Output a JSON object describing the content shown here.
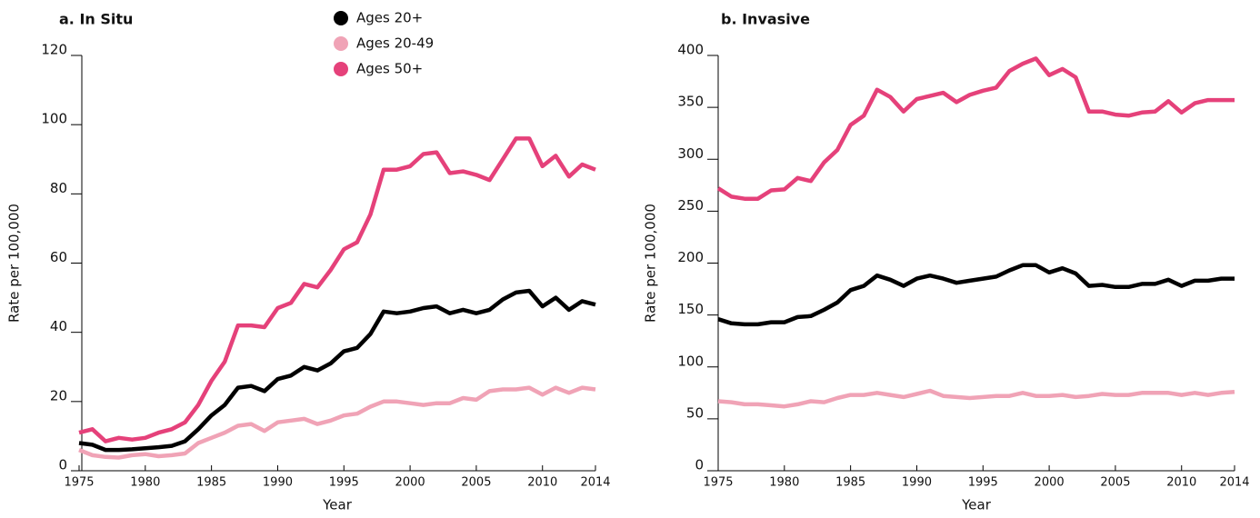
{
  "chart_data": [
    {
      "type": "line",
      "title": "a. In Situ",
      "x_label": "Year",
      "y_label": "Rate per 100,000",
      "x": [
        1975,
        1976,
        1977,
        1978,
        1979,
        1980,
        1981,
        1982,
        1983,
        1984,
        1985,
        1986,
        1987,
        1988,
        1989,
        1990,
        1991,
        1992,
        1993,
        1994,
        1995,
        1996,
        1997,
        1998,
        1999,
        2000,
        2001,
        2002,
        2003,
        2004,
        2005,
        2006,
        2007,
        2008,
        2009,
        2010,
        2011,
        2012,
        2013,
        2014
      ],
      "xlim": [
        1975,
        2014
      ],
      "xticks": [
        1975,
        1980,
        1985,
        1990,
        1995,
        2000,
        2005,
        2010,
        2014
      ],
      "ylim": [
        0,
        120
      ],
      "yticks": [
        0,
        20,
        40,
        60,
        80,
        100,
        120
      ],
      "series": [
        {
          "name": "Ages 20+",
          "color": "#000000",
          "values": [
            8,
            7.5,
            6,
            6,
            6.2,
            6.5,
            6.8,
            7.2,
            8.5,
            12,
            16,
            19,
            24,
            24.5,
            23,
            26.5,
            27.5,
            30,
            29,
            31,
            34.5,
            35.5,
            39.5,
            46,
            45.5,
            46,
            47,
            47.5,
            45.5,
            46.5,
            45.5,
            46.5,
            49.5,
            51.5,
            52,
            47.5,
            50,
            46.5,
            49,
            48
          ]
        },
        {
          "name": "Ages 20-49",
          "color": "#f0a3b6",
          "values": [
            6,
            4.5,
            4,
            3.8,
            4.5,
            4.8,
            4.2,
            4.5,
            5,
            8,
            9.5,
            11,
            13,
            13.5,
            11.5,
            14,
            14.5,
            15,
            13.5,
            14.5,
            16,
            16.5,
            18.5,
            20,
            20,
            19.5,
            19,
            19.5,
            19.5,
            21,
            20.5,
            23,
            23.5,
            23.5,
            24,
            22,
            24,
            22.5,
            24,
            23.5
          ]
        },
        {
          "name": "Ages 50+",
          "color": "#e5417a",
          "values": [
            11,
            12,
            8.5,
            9.5,
            9,
            9.5,
            11,
            12,
            14,
            19,
            26,
            31.5,
            42,
            42,
            41.5,
            47,
            48.5,
            54,
            53,
            58,
            64,
            66,
            74,
            87,
            87,
            88,
            91.5,
            92,
            86,
            86.5,
            85.5,
            84,
            90,
            96,
            96,
            88,
            91,
            85,
            88.5,
            87
          ]
        }
      ]
    },
    {
      "type": "line",
      "title": "b. Invasive",
      "x_label": "Year",
      "y_label": "Rate per 100,000",
      "x": [
        1975,
        1976,
        1977,
        1978,
        1979,
        1980,
        1981,
        1982,
        1983,
        1984,
        1985,
        1986,
        1987,
        1988,
        1989,
        1990,
        1991,
        1992,
        1993,
        1994,
        1995,
        1996,
        1997,
        1998,
        1999,
        2000,
        2001,
        2002,
        2003,
        2004,
        2005,
        2006,
        2007,
        2008,
        2009,
        2010,
        2011,
        2012,
        2013,
        2014
      ],
      "xlim": [
        1975,
        2014
      ],
      "xticks": [
        1975,
        1980,
        1985,
        1990,
        1995,
        2000,
        2005,
        2010,
        2014
      ],
      "ylim": [
        0,
        400
      ],
      "yticks": [
        0,
        50,
        100,
        150,
        200,
        250,
        300,
        350,
        400
      ],
      "series": [
        {
          "color": "#000000",
          "values": [
            146,
            142,
            141,
            141,
            143,
            143,
            148,
            149,
            155,
            162,
            174,
            178,
            188,
            184,
            178,
            185,
            188,
            185,
            181,
            183,
            185,
            187,
            193,
            198,
            198,
            191,
            195,
            190,
            178,
            179,
            177,
            177,
            180,
            180,
            184,
            178,
            183,
            183,
            185,
            185
          ]
        },
        {
          "color": "#f0a3b6",
          "values": [
            67,
            66,
            64,
            64,
            63,
            62,
            64,
            67,
            66,
            70,
            73,
            73,
            75,
            73,
            71,
            74,
            77,
            72,
            71,
            70,
            71,
            72,
            72,
            75,
            72,
            72,
            73,
            71,
            72,
            74,
            73,
            73,
            75,
            75,
            75,
            73,
            75,
            73,
            75,
            76
          ]
        },
        {
          "color": "#e5417a",
          "values": [
            272,
            264,
            262,
            262,
            270,
            271,
            282,
            279,
            297,
            309,
            333,
            342,
            367,
            360,
            346,
            358,
            361,
            364,
            355,
            362,
            366,
            369,
            385,
            392,
            397,
            381,
            387,
            379,
            346,
            346,
            343,
            342,
            345,
            346,
            356,
            345,
            354,
            357,
            357,
            357
          ]
        }
      ]
    }
  ]
}
